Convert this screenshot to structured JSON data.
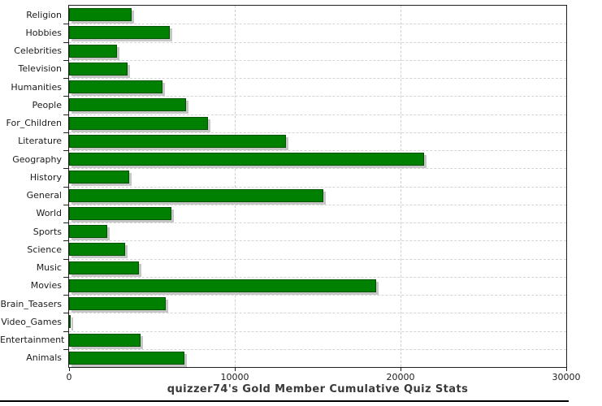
{
  "chart_data": {
    "type": "bar",
    "orientation": "horizontal",
    "title": "quizzer74's Gold Member Cumulative Quiz Stats",
    "categories": [
      "Religion",
      "Hobbies",
      "Celebrities",
      "Television",
      "Humanities",
      "People",
      "For_Children",
      "Literature",
      "Geography",
      "History",
      "General",
      "World",
      "Sports",
      "Science",
      "Music",
      "Movies",
      "Brain_Teasers",
      "Video_Games",
      "Entertainment",
      "Animals"
    ],
    "values": [
      3760,
      6080,
      2900,
      3510,
      5630,
      7070,
      8360,
      13070,
      21430,
      3640,
      15350,
      6160,
      2300,
      3380,
      4200,
      18540,
      5850,
      100,
      4310,
      6970
    ],
    "xlim": [
      0,
      30000
    ],
    "x_ticks": [
      0,
      10000,
      20000,
      30000
    ],
    "x_tick_labels": [
      "0",
      "10000",
      "20000",
      "30000"
    ],
    "grid": "dashed-major-x-and-row-boundaries",
    "legend": "none",
    "colors": {
      "bar_fill": "#008000",
      "bar_border": "#005100",
      "bar_shadow": "#c6c6c6",
      "grid_line": "#d0d0d0",
      "axis_line": "#1f1f1f",
      "tick_text": "#1c1c1c",
      "title_text": "#3a3a3a",
      "background": "#ffffff"
    }
  }
}
